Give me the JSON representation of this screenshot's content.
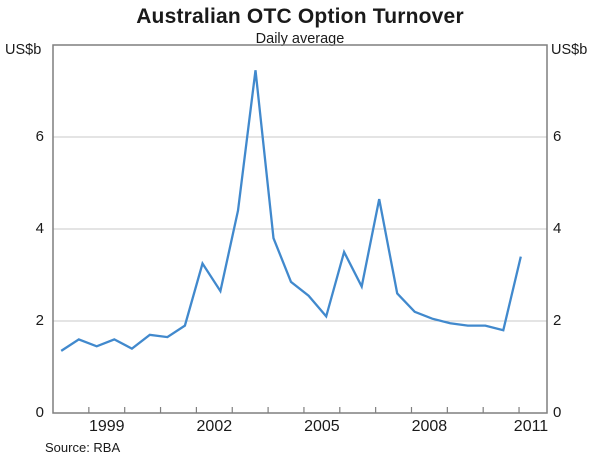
{
  "source": {
    "note": "Source: RBA"
  },
  "chart_data": {
    "type": "line",
    "title": "Australian OTC Option Turnover",
    "subtitle": "Daily average",
    "unit": "US$b",
    "grid": "horizontal gridlines at 2, 4, 6",
    "legend_position": "none",
    "ylim": [
      0,
      8
    ],
    "y_ticks": [
      0,
      2,
      4,
      6
    ],
    "xlim": [
      1998,
      2011.78
    ],
    "x_tick_years": [
      1999,
      2000,
      2001,
      2002,
      2003,
      2004,
      2005,
      2006,
      2007,
      2008,
      2009,
      2010,
      2011
    ],
    "x_label_years": [
      1999,
      2002,
      2005,
      2008,
      2011
    ],
    "series": [
      {
        "name": "Daily average Australian OTC option turnover (US$b)",
        "color": "#4189cd",
        "x": [
          1998.23,
          1998.72,
          1999.22,
          1999.71,
          2000.2,
          2000.7,
          2001.19,
          2001.68,
          2002.17,
          2002.67,
          2003.16,
          2003.65,
          2004.15,
          2004.64,
          2005.13,
          2005.62,
          2006.12,
          2006.61,
          2007.1,
          2007.6,
          2008.09,
          2008.58,
          2009.08,
          2009.57,
          2010.06,
          2010.56,
          2011.05
        ],
        "values": [
          1.35,
          1.6,
          1.45,
          1.6,
          1.4,
          1.7,
          1.65,
          1.9,
          3.25,
          2.65,
          4.4,
          7.45,
          3.8,
          2.85,
          2.55,
          2.1,
          3.5,
          2.75,
          4.65,
          2.6,
          2.2,
          2.05,
          1.95,
          1.9,
          1.9,
          1.8,
          3.4
        ]
      }
    ],
    "colors": {
      "line": "#4189cd",
      "border": "#7f7f7f",
      "gridline": "#c9c9c9",
      "text": "#1a1a1a"
    }
  }
}
